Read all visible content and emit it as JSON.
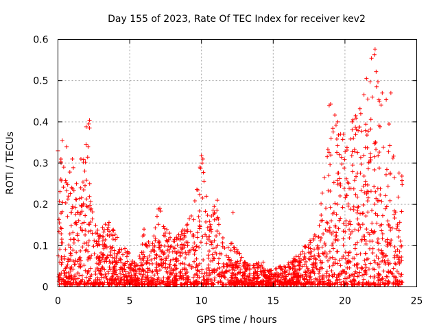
{
  "chart_data": {
    "type": "scatter",
    "title": "Day 155 of 2023, Rate Of TEC Index for receiver kev2",
    "xlabel": "GPS time / hours",
    "ylabel": "ROTI / TECUs",
    "xlim": [
      0,
      25
    ],
    "ylim": [
      0,
      0.6
    ],
    "xticks": [
      0,
      5,
      10,
      15,
      20,
      25
    ],
    "yticks": [
      0,
      0.1,
      0.2,
      0.3,
      0.4,
      0.5,
      0.6
    ],
    "xtick_labels": [
      "0",
      "5",
      "10",
      "15",
      "20",
      "25"
    ],
    "ytick_labels": [
      "0",
      "0.1",
      "0.2",
      "0.3",
      "0.4",
      "0.5",
      "0.6"
    ],
    "grid": true,
    "marker": "plus",
    "color": "#ff0000",
    "envelope": [
      [
        0.0,
        0.33
      ],
      [
        0.3,
        0.35
      ],
      [
        0.6,
        0.25
      ],
      [
        1.0,
        0.3
      ],
      [
        1.5,
        0.22
      ],
      [
        2.0,
        0.4
      ],
      [
        2.3,
        0.2
      ],
      [
        2.6,
        0.15
      ],
      [
        3.0,
        0.14
      ],
      [
        3.5,
        0.16
      ],
      [
        4.0,
        0.13
      ],
      [
        4.5,
        0.1
      ],
      [
        5.0,
        0.08
      ],
      [
        5.5,
        0.05
      ],
      [
        6.0,
        0.14
      ],
      [
        6.5,
        0.09
      ],
      [
        7.0,
        0.19
      ],
      [
        7.5,
        0.17
      ],
      [
        8.0,
        0.11
      ],
      [
        8.5,
        0.13
      ],
      [
        9.0,
        0.15
      ],
      [
        9.5,
        0.2
      ],
      [
        10.0,
        0.32
      ],
      [
        10.5,
        0.18
      ],
      [
        11.0,
        0.21
      ],
      [
        11.5,
        0.12
      ],
      [
        12.0,
        0.11
      ],
      [
        12.5,
        0.09
      ],
      [
        13.0,
        0.06
      ],
      [
        13.5,
        0.05
      ],
      [
        14.0,
        0.06
      ],
      [
        14.5,
        0.04
      ],
      [
        15.0,
        0.04
      ],
      [
        15.5,
        0.05
      ],
      [
        16.0,
        0.06
      ],
      [
        16.5,
        0.07
      ],
      [
        17.0,
        0.09
      ],
      [
        17.5,
        0.11
      ],
      [
        18.0,
        0.13
      ],
      [
        18.5,
        0.25
      ],
      [
        19.0,
        0.44
      ],
      [
        19.5,
        0.4
      ],
      [
        20.0,
        0.35
      ],
      [
        20.5,
        0.4
      ],
      [
        21.0,
        0.44
      ],
      [
        21.5,
        0.5
      ],
      [
        22.0,
        0.58
      ],
      [
        22.5,
        0.44
      ],
      [
        23.0,
        0.47
      ],
      [
        23.5,
        0.28
      ],
      [
        24.0,
        0.28
      ]
    ],
    "highlight_points": [
      [
        22.1,
        0.576
      ],
      [
        22.05,
        0.563
      ],
      [
        21.5,
        0.505
      ],
      [
        21.75,
        0.497
      ],
      [
        22.3,
        0.497
      ],
      [
        22.2,
        0.485
      ],
      [
        22.6,
        0.47
      ],
      [
        23.2,
        0.47
      ],
      [
        19.0,
        0.443
      ],
      [
        18.9,
        0.44
      ],
      [
        22.4,
        0.45
      ],
      [
        21.9,
        0.46
      ],
      [
        2.2,
        0.404
      ],
      [
        2.15,
        0.395
      ],
      [
        2.2,
        0.385
      ],
      [
        19.5,
        0.4
      ],
      [
        20.5,
        0.4
      ],
      [
        19.9,
        0.37
      ],
      [
        21.1,
        0.42
      ],
      [
        0.3,
        0.355
      ],
      [
        0.0,
        0.33
      ],
      [
        0.6,
        0.34
      ],
      [
        1.0,
        0.31
      ],
      [
        10.0,
        0.318
      ],
      [
        10.1,
        0.31
      ],
      [
        10.05,
        0.3
      ],
      [
        9.9,
        0.29
      ],
      [
        2.1,
        0.34
      ],
      [
        1.6,
        0.31
      ],
      [
        0.4,
        0.29
      ],
      [
        7.1,
        0.19
      ],
      [
        11.1,
        0.21
      ],
      [
        12.2,
        0.18
      ],
      [
        6.0,
        0.14
      ],
      [
        14.3,
        0.06
      ]
    ]
  }
}
